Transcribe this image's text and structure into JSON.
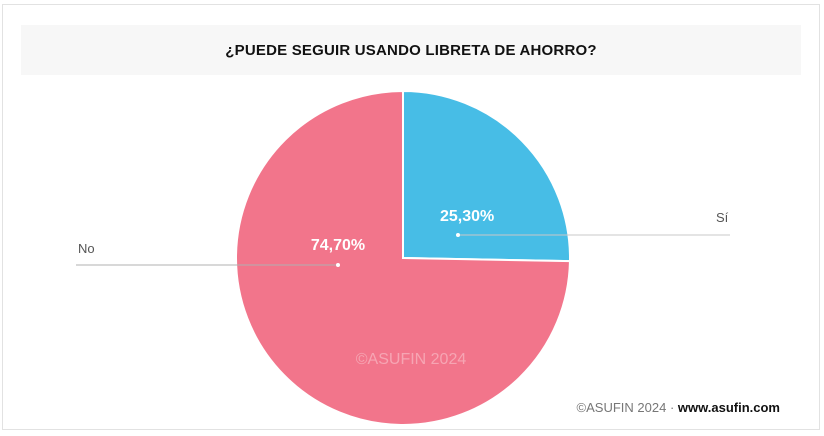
{
  "chart_data": {
    "type": "pie",
    "title": "¿PUEDE SEGUIR USANDO LIBRETA DE AHORRO?",
    "slices": [
      {
        "label": "Sí",
        "value": 25.3,
        "value_label": "25,30%",
        "color": "#47bde6"
      },
      {
        "label": "No",
        "value": 74.7,
        "value_label": "74,70%",
        "color": "#f2758b"
      }
    ],
    "watermark": "©ASUFIN 2024"
  },
  "footer": {
    "copyright": "©ASUFIN 2024 ·",
    "url": "www.asufin.com"
  }
}
